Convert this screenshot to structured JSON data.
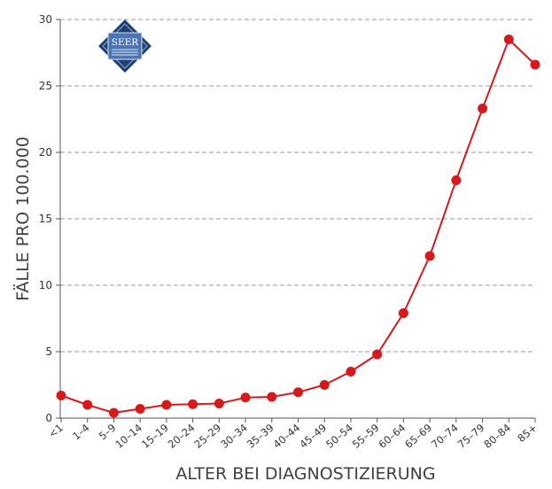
{
  "logo": {
    "text": "SEER"
  },
  "chart_data": {
    "type": "line",
    "title": "",
    "xlabel": "ALTER BEI DIAGNOSTIZIERUNG",
    "ylabel": "FÄLLE PRO 100.000",
    "categories": [
      "<1",
      "1–4",
      "5–9",
      "10–14",
      "15–19",
      "20–24",
      "25–29",
      "30–34",
      "35–39",
      "40–44",
      "45–49",
      "50–54",
      "55–59",
      "60–64",
      "65–69",
      "70–74",
      "75–79",
      "80–84",
      "85+"
    ],
    "series": [
      {
        "values": [
          1.7,
          1.0,
          0.4,
          0.7,
          1.0,
          1.05,
          1.1,
          1.55,
          1.6,
          1.95,
          2.5,
          3.5,
          4.8,
          7.9,
          12.2,
          17.9,
          23.3,
          28.5,
          26.6
        ],
        "color": "#d7191c"
      }
    ],
    "ylim": [
      0,
      30
    ],
    "yticks": [
      0,
      5,
      10,
      15,
      20,
      25,
      30
    ],
    "grid": "horizontal-dashed",
    "legend": "none"
  }
}
